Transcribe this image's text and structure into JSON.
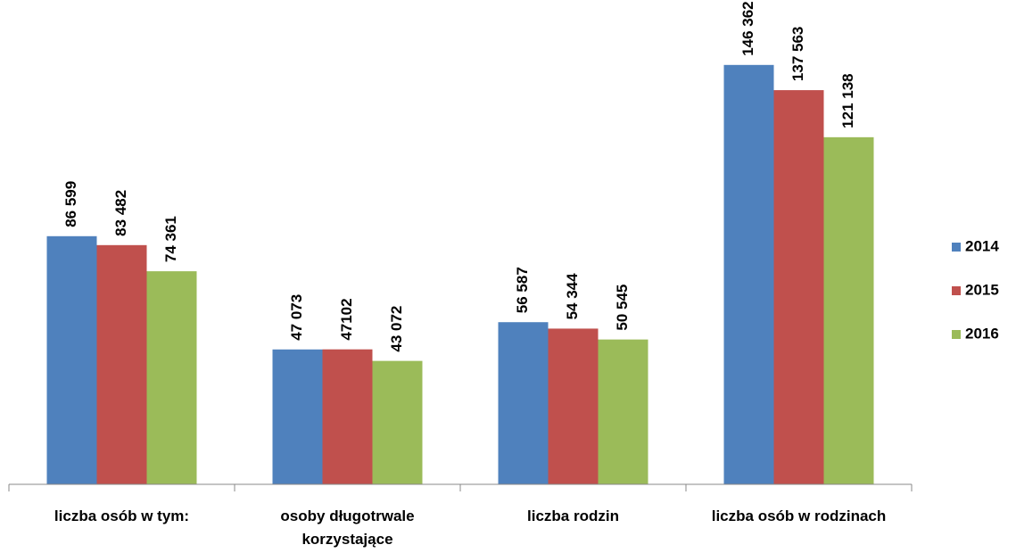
{
  "chart_data": {
    "type": "bar",
    "categories": [
      "liczba osób w tym:",
      "osoby długotrwale korzystające",
      "liczba rodzin",
      "liczba osób w rodzinach"
    ],
    "series": [
      {
        "name": "2014",
        "color": "#4f81bd",
        "values": [
          86599,
          47073,
          56587,
          146362
        ],
        "value_labels": [
          "86 599",
          "47 073",
          "56 587",
          "146 362"
        ]
      },
      {
        "name": "2015",
        "color": "#c0504d",
        "values": [
          83482,
          47102,
          54344,
          137563
        ],
        "value_labels": [
          "83 482",
          "47102",
          "54 344",
          "137 563"
        ]
      },
      {
        "name": "2016",
        "color": "#9bbb59",
        "values": [
          74361,
          43072,
          50545,
          121138
        ],
        "value_labels": [
          "74 361",
          "43 072",
          "50 545",
          "121 138"
        ]
      }
    ],
    "ylim": [
      0,
      160000
    ],
    "legend": "right"
  }
}
